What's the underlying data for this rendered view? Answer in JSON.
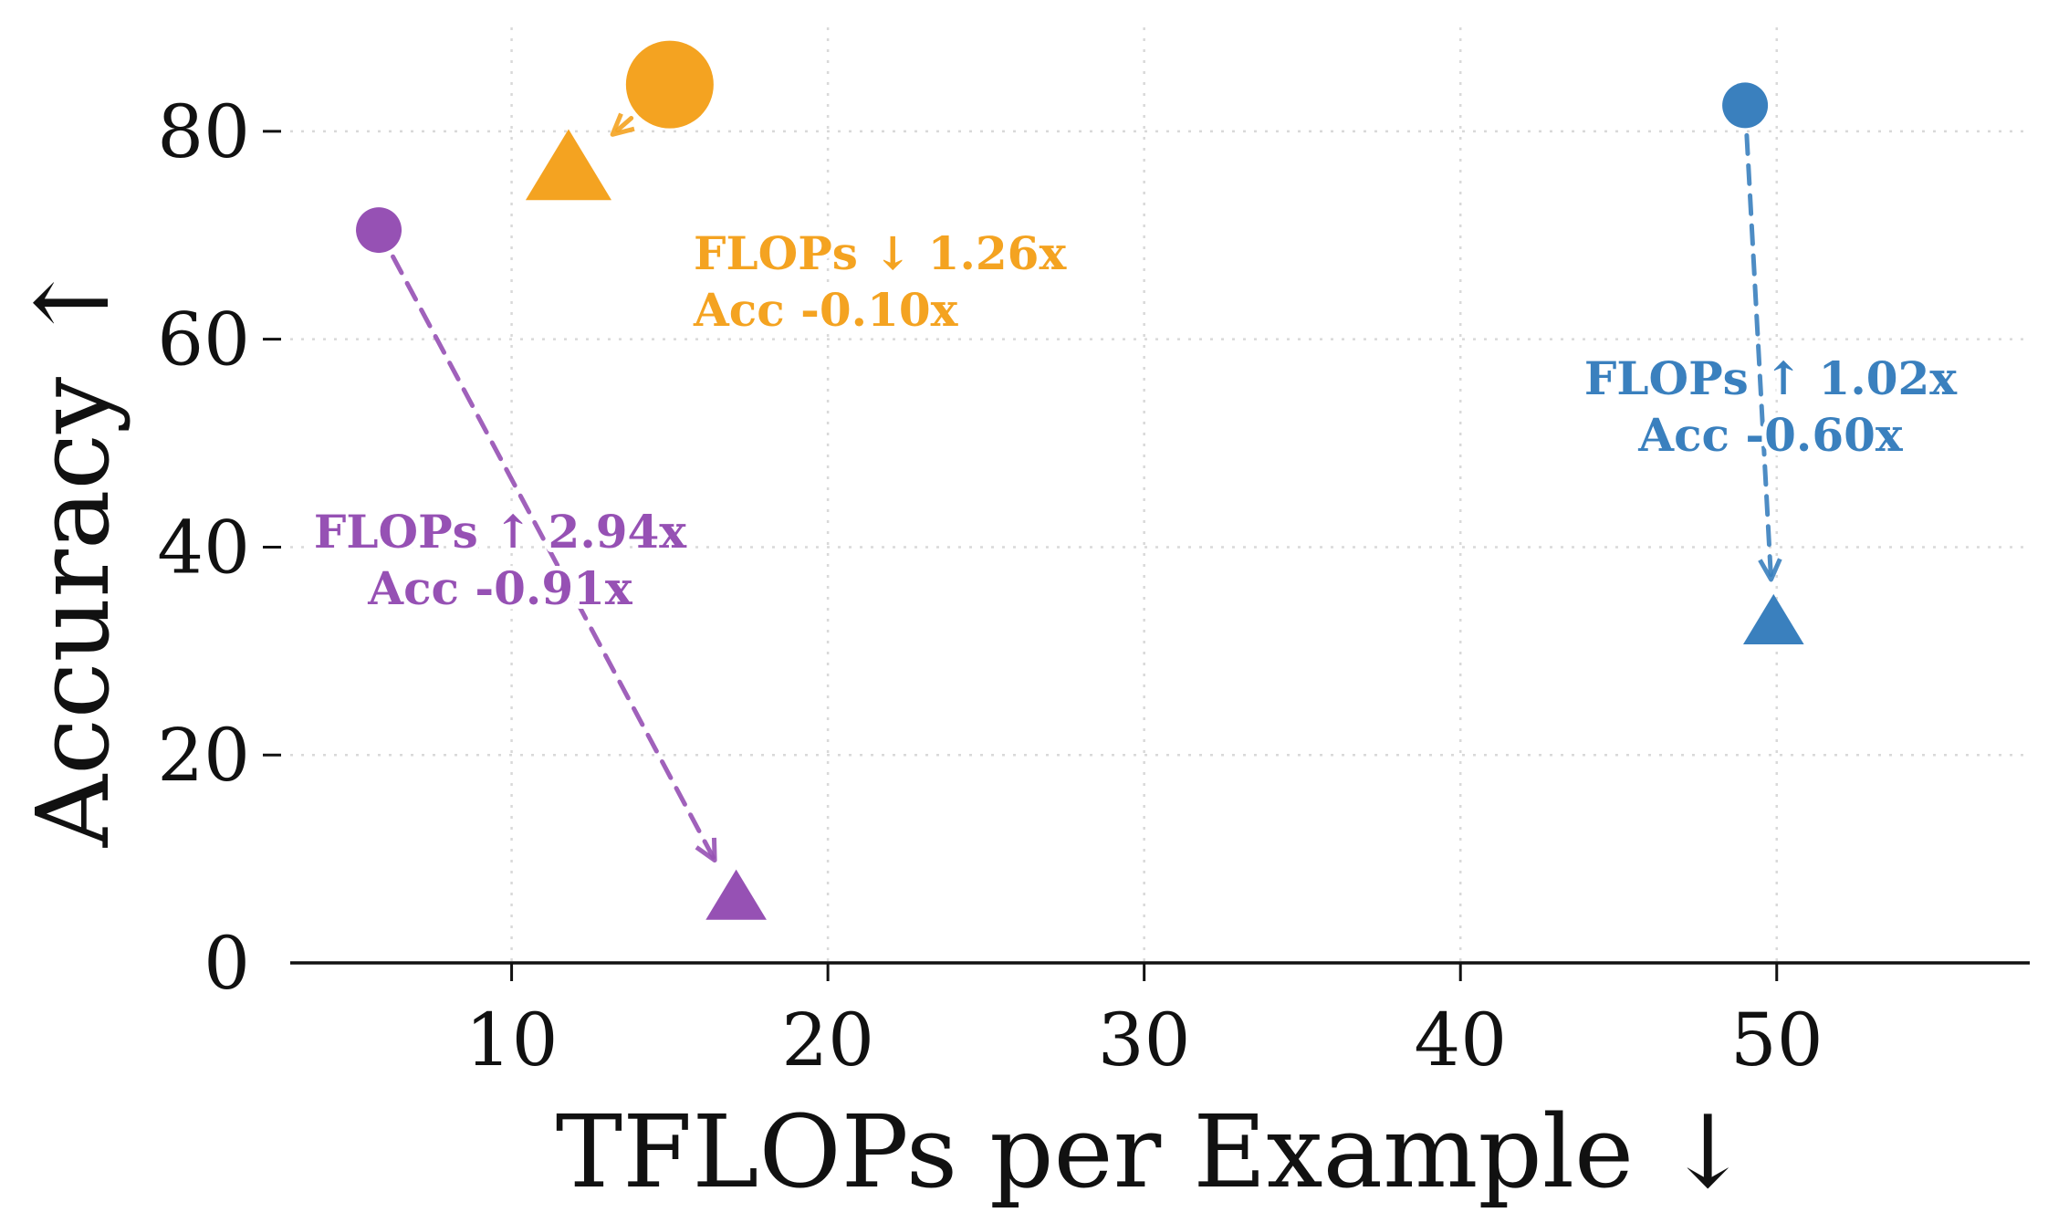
{
  "chart_data": {
    "type": "scatter",
    "xlabel": "TFLOPs per Example ↓",
    "ylabel": "Accuracy ↑",
    "xlim": [
      3,
      58
    ],
    "ylim": [
      0,
      90
    ],
    "xticks": [
      10,
      20,
      30,
      40,
      50
    ],
    "yticks": [
      0,
      20,
      40,
      60,
      80
    ],
    "grid": true,
    "series": [
      {
        "color": "#f4a321",
        "start": {
          "x": 15.0,
          "y": 84.5,
          "marker": "circle",
          "size": "large"
        },
        "end": {
          "x": 11.8,
          "y": 76.0,
          "marker": "triangle",
          "size": "large"
        },
        "annotation": [
          "FLOPs ↓ 1.26x",
          "Acc -0.10x"
        ]
      },
      {
        "color": "#9651b4",
        "start": {
          "x": 5.8,
          "y": 70.5,
          "marker": "circle",
          "size": "medium"
        },
        "end": {
          "x": 17.1,
          "y": 6.0,
          "marker": "triangle",
          "size": "medium"
        },
        "annotation": [
          "FLOPs ↑ 2.94x",
          "Acc -0.91x"
        ]
      },
      {
        "color": "#3a80be",
        "start": {
          "x": 49.0,
          "y": 82.5,
          "marker": "circle",
          "size": "medium"
        },
        "end": {
          "x": 49.9,
          "y": 32.5,
          "marker": "triangle",
          "size": "medium"
        },
        "annotation": [
          "FLOPs ↑ 1.02x",
          "Acc -0.60x"
        ]
      }
    ]
  }
}
